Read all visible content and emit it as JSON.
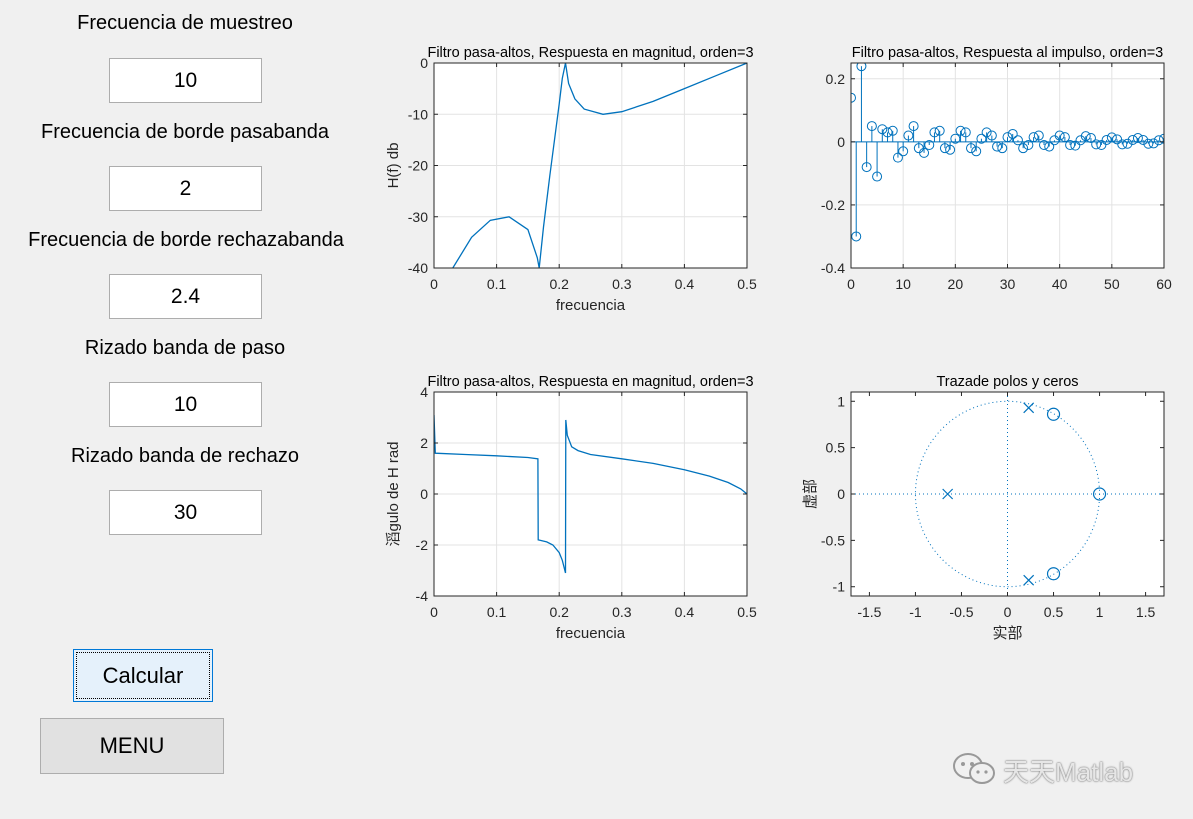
{
  "inputs": [
    {
      "label": "Frecuencia de muestreo",
      "value": "10"
    },
    {
      "label": "Frecuencia de borde pasabanda",
      "value": "2"
    },
    {
      "label": "Frecuencia de borde rechazabanda",
      "value": "2.4"
    },
    {
      "label": "Rizado banda de paso",
      "value": "10"
    },
    {
      "label": "Rizado banda de rechazo",
      "value": "30"
    }
  ],
  "buttons": {
    "calc": "Calcular",
    "menu": "MENU"
  },
  "watermark": "天天Matlab",
  "colors": {
    "series": "#0072bd",
    "grid": "#e3e3e3",
    "axes": "#262626"
  },
  "chart_data": [
    {
      "type": "line",
      "title": "Filtro pasa-altos, Respuesta en magnitud, orden=3",
      "xlabel": "frecuencia",
      "ylabel": "H(f) db",
      "xlim": [
        0,
        0.5
      ],
      "ylim": [
        -40,
        0
      ],
      "xticks": [
        "0",
        "0.1",
        "0.2",
        "0.3",
        "0.4",
        "0.5"
      ],
      "yticks": [
        "0",
        "-10",
        "-20",
        "-30",
        "-40"
      ],
      "grid": true,
      "x": [
        0.03,
        0.06,
        0.09,
        0.12,
        0.15,
        0.165,
        0.168,
        0.175,
        0.185,
        0.2,
        0.205,
        0.21,
        0.215,
        0.225,
        0.24,
        0.27,
        0.3,
        0.35,
        0.4,
        0.45,
        0.5
      ],
      "y": [
        -40,
        -34,
        -30.7,
        -30,
        -32.5,
        -38,
        -40,
        -32,
        -22,
        -8,
        -3,
        0,
        -4,
        -7,
        -9,
        -10,
        -9.5,
        -7.5,
        -5,
        -2.5,
        0
      ]
    },
    {
      "type": "scatter",
      "title": "Filtro pasa-altos, Respuesta al impulso, orden=3",
      "xlabel": "",
      "ylabel": "",
      "xlim": [
        0,
        60
      ],
      "ylim": [
        -0.4,
        0.25
      ],
      "xticks": [
        "0",
        "10",
        "20",
        "30",
        "40",
        "50",
        "60"
      ],
      "yticks": [
        "0.2",
        "0",
        "-0.2",
        "-0.4"
      ],
      "grid": true,
      "style": "stem",
      "x": [
        0,
        1,
        2,
        3,
        4,
        5,
        6,
        7,
        8,
        9,
        10,
        11,
        12,
        13,
        14,
        15,
        16,
        17,
        18,
        19,
        20,
        21,
        22,
        23,
        24,
        25,
        26,
        27,
        28,
        29,
        30,
        31,
        32,
        33,
        34,
        35,
        36,
        37,
        38,
        39,
        40,
        41,
        42,
        43,
        44,
        45,
        46,
        47,
        48,
        49,
        50,
        51,
        52,
        53,
        54,
        55,
        56,
        57,
        58,
        59,
        60
      ],
      "y": [
        0.14,
        -0.3,
        0.24,
        -0.08,
        0.05,
        -0.11,
        0.04,
        0.03,
        0.035,
        -0.05,
        -0.03,
        0.02,
        0.05,
        -0.02,
        -0.035,
        -0.01,
        0.03,
        0.035,
        -0.02,
        -0.025,
        0.01,
        0.035,
        0.03,
        -0.02,
        -0.03,
        0.01,
        0.03,
        0.02,
        -0.015,
        -0.02,
        0.015,
        0.025,
        0.005,
        -0.02,
        -0.01,
        0.015,
        0.02,
        -0.01,
        -0.015,
        0.005,
        0.02,
        0.015,
        -0.01,
        -0.012,
        0.005,
        0.018,
        0.012,
        -0.008,
        -0.01,
        0.006,
        0.014,
        0.008,
        -0.008,
        -0.006,
        0.006,
        0.012,
        0.006,
        -0.006,
        -0.005,
        0.005,
        0.01
      ]
    },
    {
      "type": "line",
      "title": "Filtro pasa-altos, Respuesta en magnitud, orden=3",
      "xlabel": "frecuencia",
      "ylabel": "滔gulo de H rad",
      "xlim": [
        0,
        0.5
      ],
      "ylim": [
        -4,
        4
      ],
      "xticks": [
        "0",
        "0.1",
        "0.2",
        "0.3",
        "0.4",
        "0.5"
      ],
      "yticks": [
        "4",
        "2",
        "0",
        "-2",
        "-4"
      ],
      "grid": true,
      "x": [
        0,
        0.002,
        0.05,
        0.1,
        0.15,
        0.166,
        0.1665,
        0.17,
        0.18,
        0.19,
        0.2,
        0.205,
        0.21,
        0.2105,
        0.213,
        0.22,
        0.23,
        0.25,
        0.3,
        0.35,
        0.4,
        0.44,
        0.47,
        0.49,
        0.5
      ],
      "y": [
        3.1,
        1.6,
        1.55,
        1.5,
        1.43,
        1.38,
        -1.8,
        -1.82,
        -1.88,
        -2.0,
        -2.3,
        -2.6,
        -3.1,
        2.9,
        2.3,
        1.85,
        1.7,
        1.55,
        1.38,
        1.2,
        0.95,
        0.7,
        0.45,
        0.2,
        0
      ]
    },
    {
      "type": "scatter",
      "title": "Trazade polos y ceros",
      "xlabel": "实部",
      "ylabel": "虚部",
      "xlim": [
        -1.7,
        1.7
      ],
      "ylim": [
        -1.1,
        1.1
      ],
      "xticks": [
        "-1.5",
        "-1",
        "-0.5",
        "0",
        "0.5",
        "1",
        "1.5"
      ],
      "yticks": [
        "1",
        "0.5",
        "0",
        "-0.5",
        "-1"
      ],
      "grid": false,
      "unit_circle": true,
      "series": [
        {
          "marker": "x",
          "x": [
            0.23,
            0.23,
            -0.65
          ],
          "y": [
            0.93,
            -0.93,
            0
          ]
        },
        {
          "marker": "o",
          "x": [
            0.5,
            0.5,
            1.0
          ],
          "y": [
            0.86,
            -0.86,
            0
          ]
        }
      ]
    }
  ]
}
